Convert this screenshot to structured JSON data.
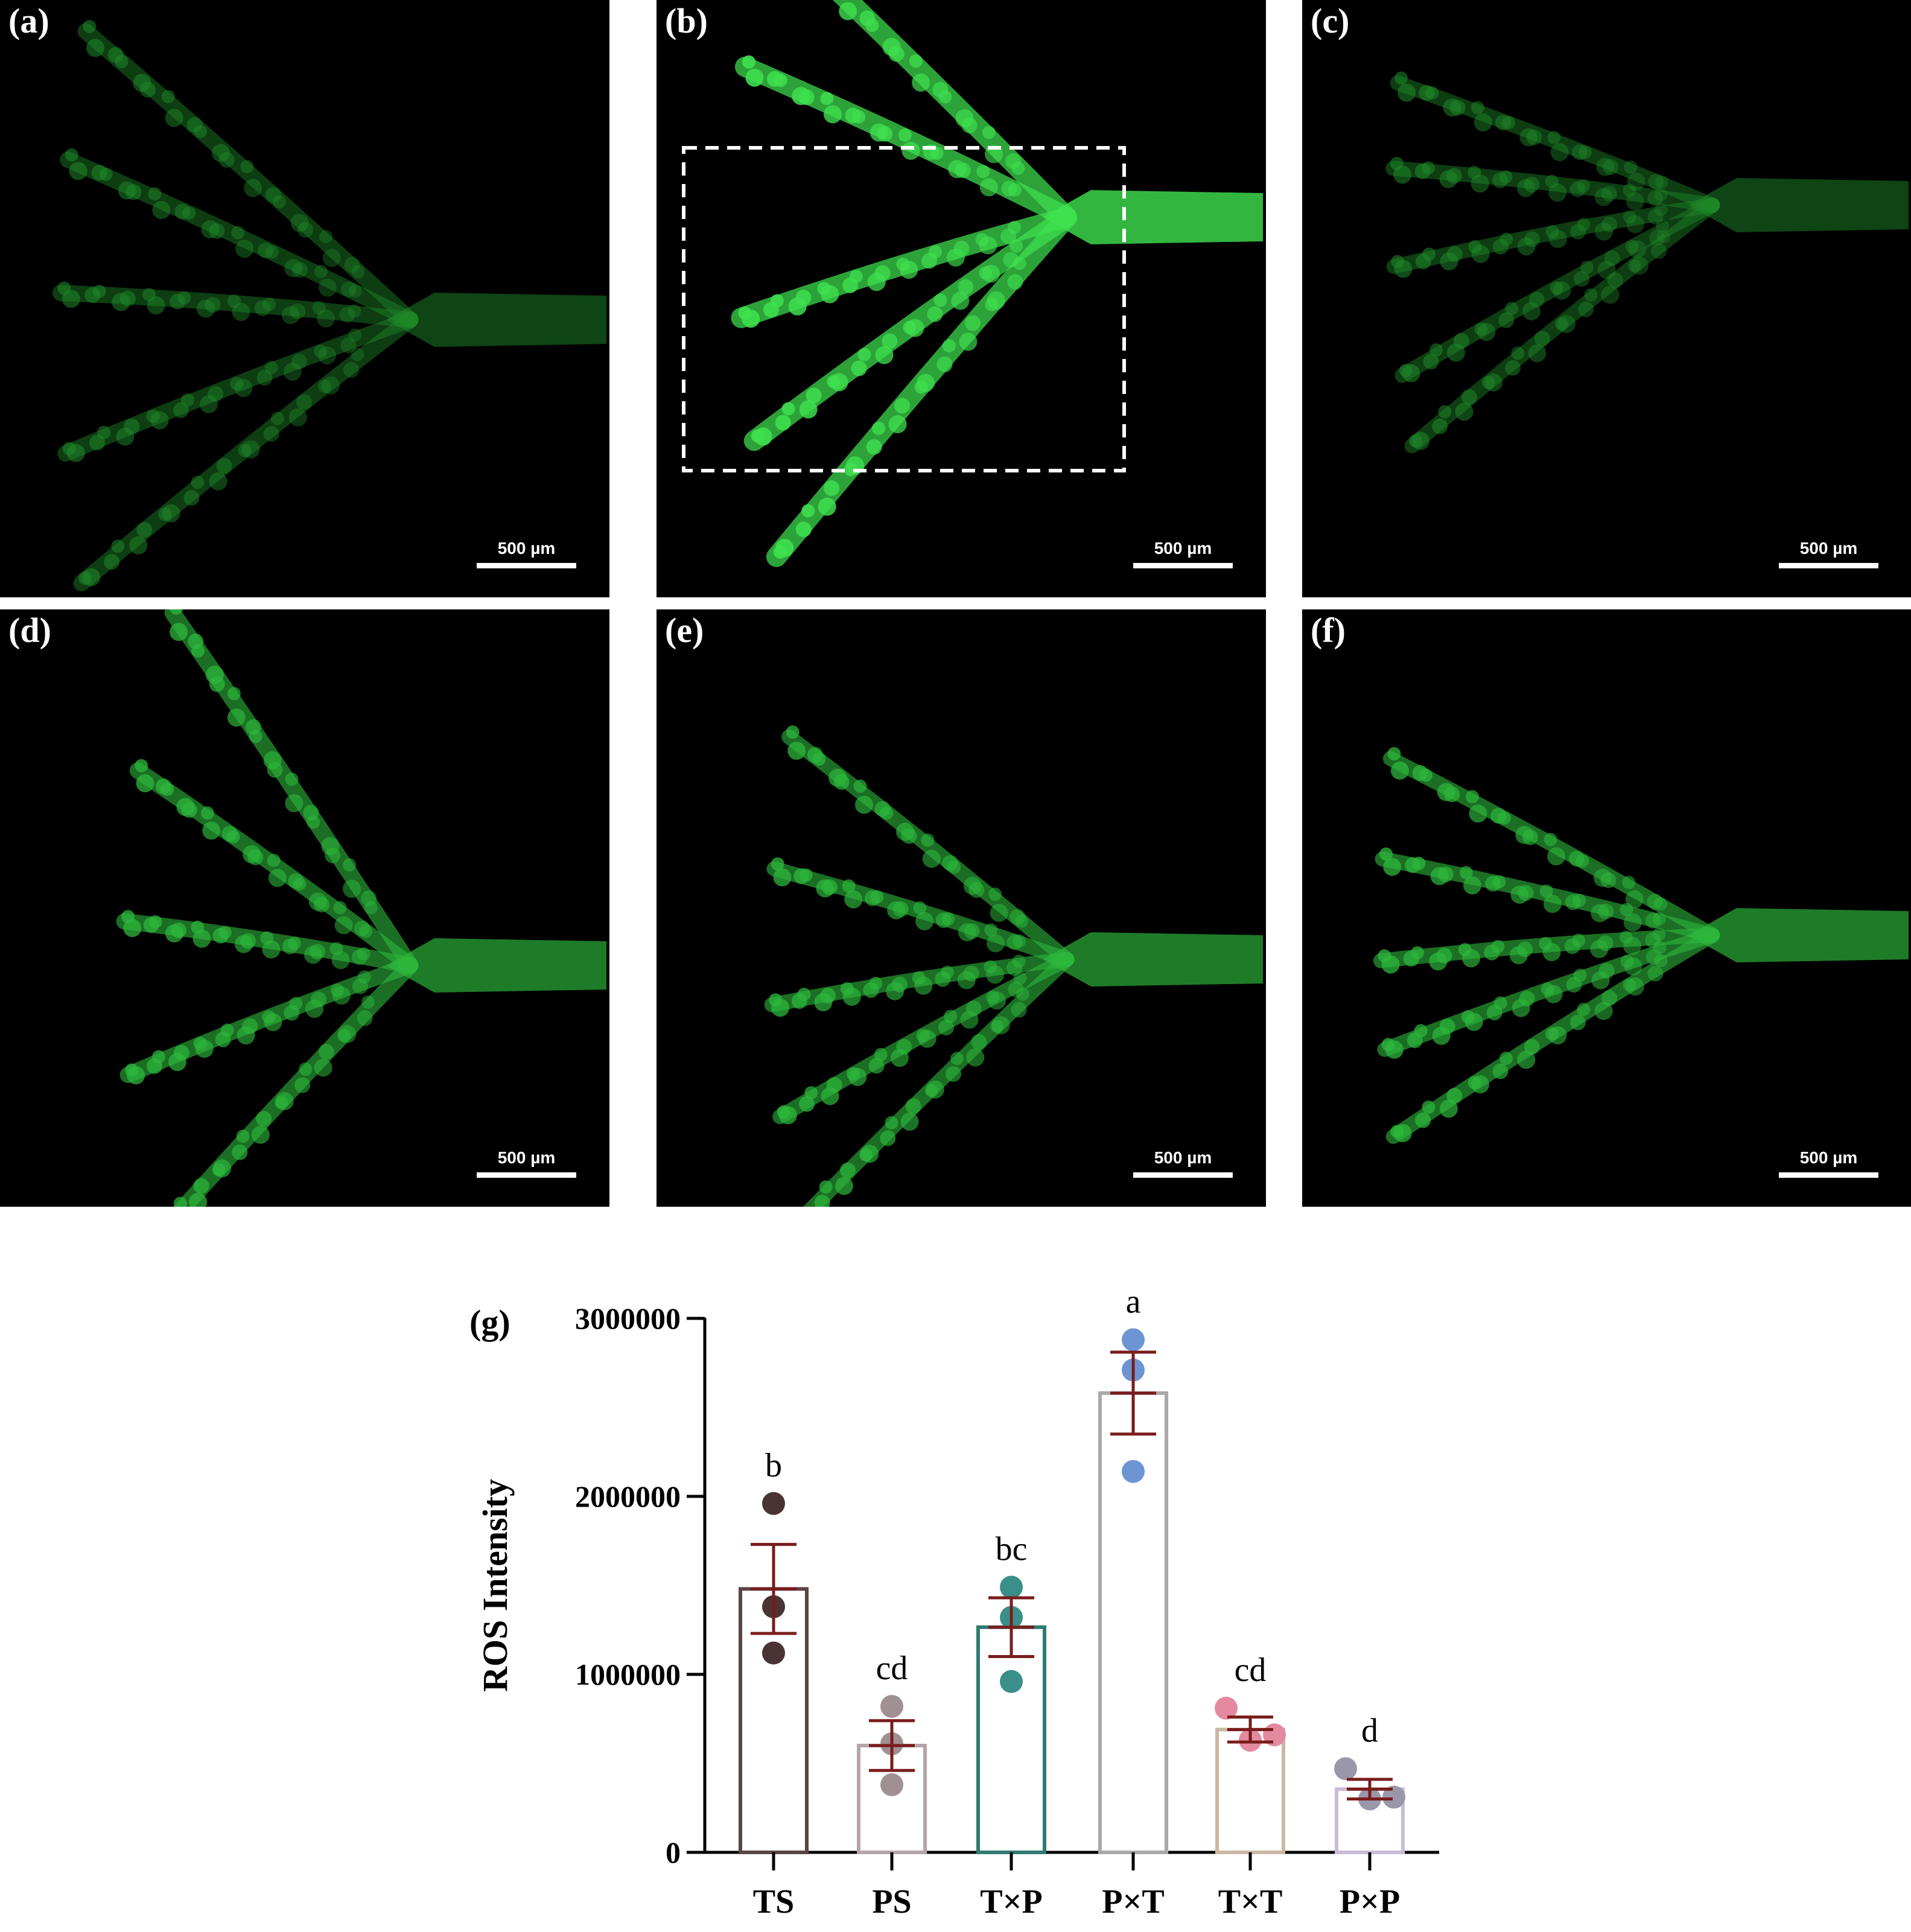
{
  "panels": [
    {
      "label": "(a)",
      "scalebar": "500 µm",
      "intensity": "dim"
    },
    {
      "label": "(b)",
      "scalebar": "500 µm",
      "intensity": "bright"
    },
    {
      "label": "(c)",
      "scalebar": "500 µm",
      "intensity": "dim"
    },
    {
      "label": "(d)",
      "scalebar": "500 µm",
      "intensity": "medium"
    },
    {
      "label": "(e)",
      "scalebar": "500 µm",
      "intensity": "medium"
    },
    {
      "label": "(f)",
      "scalebar": "500 µm",
      "intensity": "medium"
    }
  ],
  "chart_data": {
    "type": "bar",
    "panel_label": "(g)",
    "categories": [
      "TS",
      "PS",
      "T×P",
      "P×T",
      "T×T",
      "P×P"
    ],
    "values": [
      1480000,
      600000,
      1265000,
      2580000,
      690000,
      355000
    ],
    "error": [
      250000,
      140000,
      165000,
      230000,
      70000,
      55000
    ],
    "points": [
      [
        1960000,
        1380000,
        1120000
      ],
      [
        820000,
        610000,
        380000
      ],
      [
        1490000,
        1320000,
        960000
      ],
      [
        2880000,
        2710000,
        2140000
      ],
      [
        810000,
        630000,
        660000
      ],
      [
        470000,
        300000,
        310000
      ]
    ],
    "significance": [
      "b",
      "cd",
      "bc",
      "a",
      "cd",
      "d"
    ],
    "ylabel": "ROS Intensity",
    "xlabel": "",
    "ylim": [
      0,
      3000000
    ],
    "yticks": [
      0,
      1000000,
      2000000,
      3000000
    ],
    "ytick_labels": [
      "0",
      "1000000",
      "2000000",
      "3000000"
    ],
    "colors": {
      "bar_edges": [
        "#5a4446",
        "#b3a5a8",
        "#2f7a73",
        "#a9a9a9",
        "#cbb7a3",
        "#c9bcd8"
      ],
      "points": [
        "#4a3335",
        "#a08f93",
        "#3a8f88",
        "#6e95d3",
        "#e48aa0",
        "#9a97ab"
      ],
      "error_bars": "#7a1c1c"
    },
    "grid": false,
    "legend": "none"
  }
}
